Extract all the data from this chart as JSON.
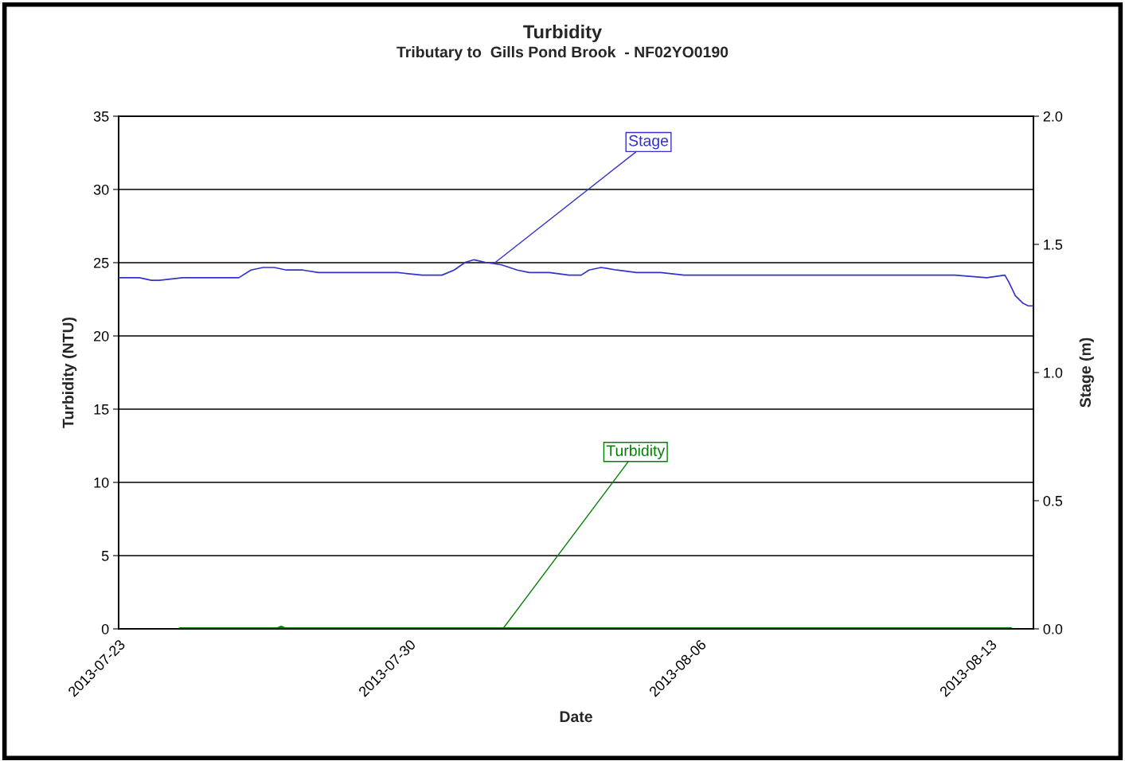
{
  "chart_data": {
    "type": "line",
    "title": "Turbidity",
    "subtitle": "Tributary to  Gills Pond Brook  - NF02YO0190",
    "xlabel": "Date",
    "ylabel": "Turbidity (NTU)",
    "y2label": "Stage (m)",
    "xlim": [
      "2013-07-23",
      "2013-08-14T01:00"
    ],
    "xticks": [
      "2013-07-23",
      "2013-07-30",
      "2013-08-06",
      "2013-08-13"
    ],
    "ylim": [
      0,
      35
    ],
    "yticks": [
      0,
      5,
      10,
      15,
      20,
      25,
      30,
      35
    ],
    "y2lim": [
      0,
      2
    ],
    "y2ticks": [
      {
        "value": 0,
        "label": "0.0"
      },
      {
        "value": 0.5,
        "label": "0.5"
      },
      {
        "value": 1,
        "label": "1.0"
      },
      {
        "value": 1.5,
        "label": "1.5"
      },
      {
        "value": 2,
        "label": "2.0"
      }
    ],
    "grid": "y",
    "legend": false,
    "marker": "none",
    "line_style": "solid",
    "series": [
      {
        "name": "Stage",
        "color": "#3333cc",
        "axis": "y2",
        "x": [
          "2013-07-23T00:00",
          "2013-07-23T05:00",
          "2013-07-23T12:00",
          "2013-07-23T19:00",
          "2013-07-23T23:30",
          "2013-07-24T13:00",
          "2013-07-25T03:00",
          "2013-07-25T21:30",
          "2013-07-26T04:30",
          "2013-07-26T11:30",
          "2013-07-26T18:00",
          "2013-07-27T01:00",
          "2013-07-27T10:30",
          "2013-07-27T19:30",
          "2013-07-28T09:30",
          "2013-07-29T04:00",
          "2013-07-29T17:30",
          "2013-07-30T07:30",
          "2013-07-30T19:00",
          "2013-07-31T02:00",
          "2013-07-31T08:30",
          "2013-07-31T13:30",
          "2013-07-31T20:00",
          "2013-08-01T05:30",
          "2013-08-01T14:30",
          "2013-08-01T21:30",
          "2013-08-02T09:00",
          "2013-08-02T20:30",
          "2013-08-03T03:30",
          "2013-08-03T08:00",
          "2013-08-03T15:00",
          "2013-08-04T00:00",
          "2013-08-04T11:30",
          "2013-08-05T01:30",
          "2013-08-05T15:00",
          "2013-08-06T09:30",
          "2013-08-07T08:30",
          "2013-08-08T07:30",
          "2013-08-09T06:30",
          "2013-08-10T05:30",
          "2013-08-11T04:30",
          "2013-08-12T03:30",
          "2013-08-12T22:00",
          "2013-08-13T08:30",
          "2013-08-13T11:00",
          "2013-08-13T14:30",
          "2013-08-13T19:00",
          "2013-08-13T22:00",
          "2013-08-14T01:00"
        ],
        "values": [
          1.37,
          1.37,
          1.37,
          1.36,
          1.36,
          1.37,
          1.37,
          1.37,
          1.4,
          1.41,
          1.41,
          1.4,
          1.4,
          1.39,
          1.39,
          1.39,
          1.39,
          1.38,
          1.38,
          1.4,
          1.43,
          1.44,
          1.43,
          1.42,
          1.4,
          1.39,
          1.39,
          1.38,
          1.38,
          1.4,
          1.41,
          1.4,
          1.39,
          1.39,
          1.38,
          1.38,
          1.38,
          1.38,
          1.38,
          1.38,
          1.38,
          1.38,
          1.37,
          1.38,
          1.35,
          1.3,
          1.27,
          1.26,
          1.26
        ]
      },
      {
        "name": "Turbidity",
        "color": "#008000",
        "axis": "y",
        "x": [
          "2013-07-24T11:30",
          "2013-07-26T20:00",
          "2013-07-26T22:00",
          "2013-07-27T00:00",
          "2013-08-13T12:00"
        ],
        "values": [
          0.0,
          0.0,
          0.1,
          0.0,
          0.0
        ]
      }
    ]
  }
}
